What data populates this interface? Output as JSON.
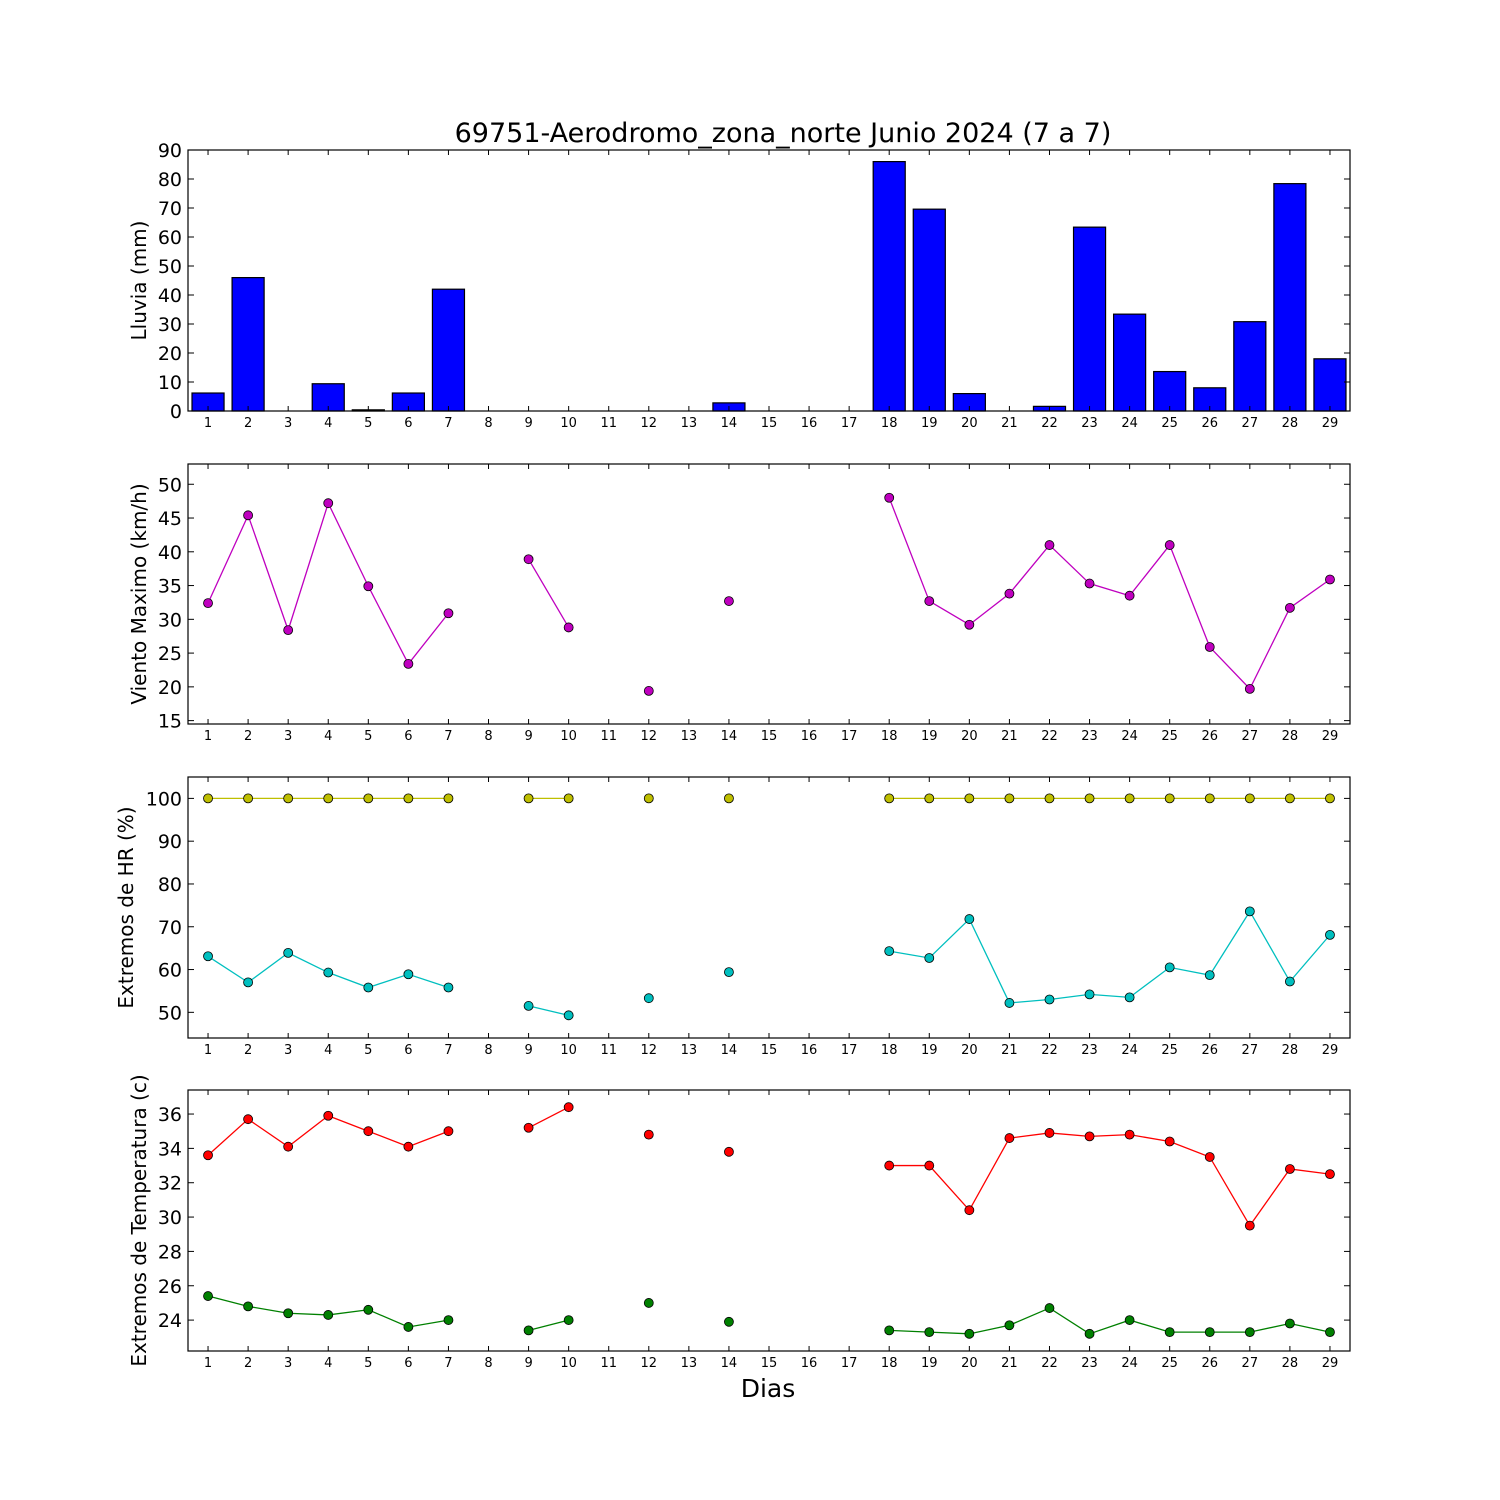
{
  "chart_data": [
    {
      "type": "bar",
      "title": "69751-Aerodromo_zona_norte Junio 2024  (7 a 7)",
      "ylabel": "Lluvia (mm)",
      "xlabel": "",
      "ylim": [
        0,
        90
      ],
      "yticks": [
        0,
        10,
        20,
        30,
        40,
        50,
        60,
        70,
        80,
        90
      ],
      "categories": [
        1,
        2,
        3,
        4,
        5,
        6,
        7,
        8,
        9,
        10,
        11,
        12,
        13,
        14,
        15,
        16,
        17,
        18,
        19,
        20,
        21,
        22,
        23,
        24,
        25,
        26,
        27,
        28,
        29
      ],
      "series": [
        {
          "values": [
            6.2,
            46,
            0,
            9.4,
            0.4,
            6.2,
            42,
            0,
            0,
            0,
            0,
            0,
            0,
            2.8,
            0,
            0,
            0,
            86,
            69.6,
            6,
            0,
            1.6,
            63.4,
            33.4,
            13.6,
            8,
            30.8,
            78.4,
            18
          ],
          "color": "#0000ff"
        }
      ]
    },
    {
      "type": "line",
      "title": "",
      "ylabel": "Viento Maximo (km/h)",
      "xlabel": "",
      "ylim": [
        14.5,
        53
      ],
      "yticks": [
        15,
        20,
        25,
        30,
        35,
        40,
        45,
        50
      ],
      "x": [
        1,
        2,
        3,
        4,
        5,
        6,
        7,
        8,
        9,
        10,
        11,
        12,
        13,
        14,
        15,
        16,
        17,
        18,
        19,
        20,
        21,
        22,
        23,
        24,
        25,
        26,
        27,
        28,
        29
      ],
      "series": [
        {
          "values": [
            32.4,
            45.4,
            28.4,
            47.2,
            34.9,
            23.4,
            30.9,
            null,
            38.9,
            28.8,
            null,
            19.4,
            null,
            32.7,
            null,
            null,
            null,
            48,
            32.7,
            29.2,
            33.8,
            41,
            35.3,
            33.5,
            41,
            25.9,
            19.7,
            31.7,
            35.9
          ],
          "color": "#bf00bf"
        }
      ]
    },
    {
      "type": "line",
      "title": "",
      "ylabel": "Extremos de HR (%)",
      "xlabel": "",
      "ylim": [
        44,
        105
      ],
      "yticks": [
        50,
        60,
        70,
        80,
        90,
        100
      ],
      "x": [
        1,
        2,
        3,
        4,
        5,
        6,
        7,
        8,
        9,
        10,
        11,
        12,
        13,
        14,
        15,
        16,
        17,
        18,
        19,
        20,
        21,
        22,
        23,
        24,
        25,
        26,
        27,
        28,
        29
      ],
      "series": [
        {
          "values": [
            100,
            100,
            100,
            100,
            100,
            100,
            100,
            null,
            100,
            100,
            null,
            100,
            null,
            100,
            null,
            null,
            null,
            100,
            100,
            100,
            100,
            100,
            100,
            100,
            100,
            100,
            100,
            100,
            100
          ],
          "color": "#bfbf00"
        },
        {
          "values": [
            63.1,
            57,
            63.9,
            59.3,
            55.8,
            58.9,
            55.8,
            null,
            51.5,
            49.3,
            null,
            53.3,
            null,
            59.4,
            null,
            null,
            null,
            64.3,
            62.7,
            71.8,
            52.2,
            53,
            54.2,
            53.5,
            60.5,
            58.7,
            73.6,
            57.2,
            68.1
          ],
          "color": "#00bfbf"
        }
      ]
    },
    {
      "type": "line",
      "title": "",
      "ylabel": "Extremos de Temperatura (c)",
      "xlabel": "Dias",
      "ylim": [
        22.2,
        37.4
      ],
      "yticks": [
        24,
        26,
        28,
        30,
        32,
        34,
        36
      ],
      "x": [
        1,
        2,
        3,
        4,
        5,
        6,
        7,
        8,
        9,
        10,
        11,
        12,
        13,
        14,
        15,
        16,
        17,
        18,
        19,
        20,
        21,
        22,
        23,
        24,
        25,
        26,
        27,
        28,
        29
      ],
      "series": [
        {
          "values": [
            33.6,
            35.7,
            34.1,
            35.9,
            35,
            34.1,
            35,
            null,
            35.2,
            36.4,
            null,
            34.8,
            null,
            33.8,
            null,
            null,
            null,
            33,
            33,
            30.4,
            34.6,
            34.9,
            34.7,
            34.8,
            34.4,
            33.5,
            29.5,
            32.8,
            32.5
          ],
          "color": "#ff0000"
        },
        {
          "values": [
            25.4,
            24.8,
            24.4,
            24.3,
            24.6,
            23.6,
            24,
            null,
            23.4,
            24,
            null,
            25,
            null,
            23.9,
            null,
            null,
            null,
            23.4,
            23.3,
            23.2,
            23.7,
            24.7,
            23.2,
            24,
            23.3,
            23.3,
            23.3,
            23.8,
            23.3
          ],
          "color": "#008000"
        }
      ]
    }
  ]
}
